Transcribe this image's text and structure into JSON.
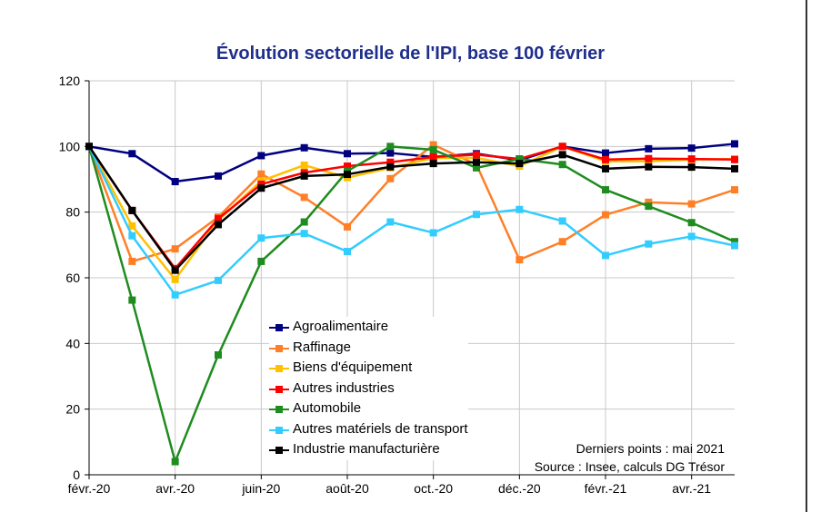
{
  "chart_data": {
    "type": "line",
    "title": "Évolution sectorielle de l'IPI, base 100 février",
    "xlabel": "",
    "ylabel": "",
    "ylim": [
      0,
      120
    ],
    "yticks": [
      "0",
      "20",
      "40",
      "60",
      "80",
      "100",
      "120"
    ],
    "grid": true,
    "legend_position": "bottom-left",
    "categories": [
      "févr.-20",
      "mars-20",
      "avr.-20",
      "mai-20",
      "juin-20",
      "juil.-20",
      "août-20",
      "sept.-20",
      "oct.-20",
      "nov.-20",
      "déc.-20",
      "janv.-21",
      "févr.-21",
      "mars-21",
      "avr.-21",
      "mai-21"
    ],
    "tick_labels": [
      "févr.-20",
      "",
      "avr.-20",
      "",
      "juin-20",
      "",
      "août-20",
      "",
      "oct.-20",
      "",
      "déc.-20",
      "",
      "févr.-21",
      "",
      "avr.-21",
      ""
    ],
    "series": [
      {
        "name": "Agroalimentaire",
        "color": "#000080",
        "values": [
          100,
          97.8,
          89.3,
          91,
          97.2,
          99.6,
          97.8,
          98,
          96.8,
          97.8,
          95.8,
          100,
          98,
          99.3,
          99.5,
          100.8
        ]
      },
      {
        "name": "Raffinage",
        "color": "#ff7f27",
        "values": [
          100,
          65,
          68.8,
          78.5,
          91.6,
          84.5,
          75.5,
          90.2,
          100.5,
          94.5,
          65.5,
          71,
          79.2,
          83,
          82.5,
          86.8
        ]
      },
      {
        "name": "Biens d'équipement",
        "color": "#ffc000",
        "values": [
          100,
          75.8,
          59.5,
          77.5,
          89.5,
          94.3,
          90.5,
          93.5,
          96.5,
          96.5,
          94,
          100,
          95.5,
          95.5,
          96,
          96.2
        ]
      },
      {
        "name": "Autres industries",
        "color": "#ff0000",
        "values": [
          100,
          80.5,
          62.8,
          78,
          88.5,
          92,
          94,
          95.2,
          96.8,
          97.5,
          96.2,
          100,
          96,
          96.3,
          96.2,
          96
        ]
      },
      {
        "name": "Automobile",
        "color": "#1e8c1e",
        "values": [
          100,
          53.2,
          4,
          36.5,
          65,
          77,
          92.5,
          100,
          99,
          93.5,
          96.2,
          94.5,
          86.8,
          81.8,
          76.8,
          71
        ]
      },
      {
        "name": "Autres matériels de transport",
        "color": "#33ccff",
        "values": [
          100,
          72.8,
          54.8,
          59.2,
          72.1,
          73.5,
          68,
          77,
          73.7,
          79.3,
          80.8,
          77.3,
          66.8,
          70.3,
          72.6,
          69.8
        ]
      },
      {
        "name": "Industrie manufacturière",
        "color": "#000000",
        "values": [
          100,
          80.5,
          62.3,
          76.2,
          87.3,
          91,
          91.5,
          93.8,
          94.8,
          95.2,
          94.8,
          97.5,
          93.2,
          93.8,
          93.7,
          93.2
        ]
      }
    ],
    "annotations": [
      "Derniers points : mai 2021",
      "Source : Insee, calculs DG Trésor"
    ]
  }
}
